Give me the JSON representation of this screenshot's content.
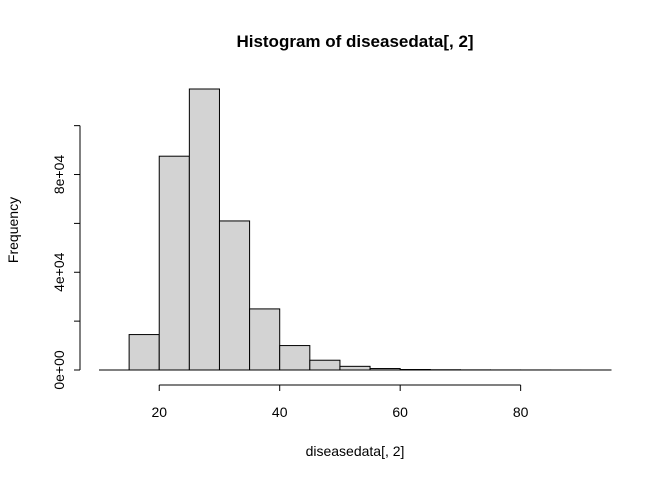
{
  "chart_data": {
    "type": "bar",
    "title": "Histogram of diseasedata[, 2]",
    "xlabel": "diseasedata[, 2]",
    "ylabel": "Frequency",
    "bin_edges": [
      15,
      20,
      25,
      30,
      35,
      40,
      45,
      50,
      55,
      60,
      65,
      70,
      75,
      80,
      85,
      90,
      95
    ],
    "values": [
      14500,
      87500,
      115000,
      61000,
      25000,
      10000,
      4000,
      1500,
      600,
      200,
      100,
      50,
      30,
      20,
      10,
      5
    ],
    "xlim": [
      10,
      95
    ],
    "ylim": [
      0,
      115000
    ],
    "x_ticks": [
      20,
      40,
      60,
      80
    ],
    "x_tick_labels": [
      "20",
      "40",
      "60",
      "80"
    ],
    "y_ticks": [
      0,
      20000,
      40000,
      60000,
      80000,
      100000
    ],
    "y_tick_labels": [
      "0e+00",
      "",
      "4e+04",
      "",
      "8e+04",
      ""
    ],
    "bar_color": "#d3d3d3",
    "grid": false
  }
}
